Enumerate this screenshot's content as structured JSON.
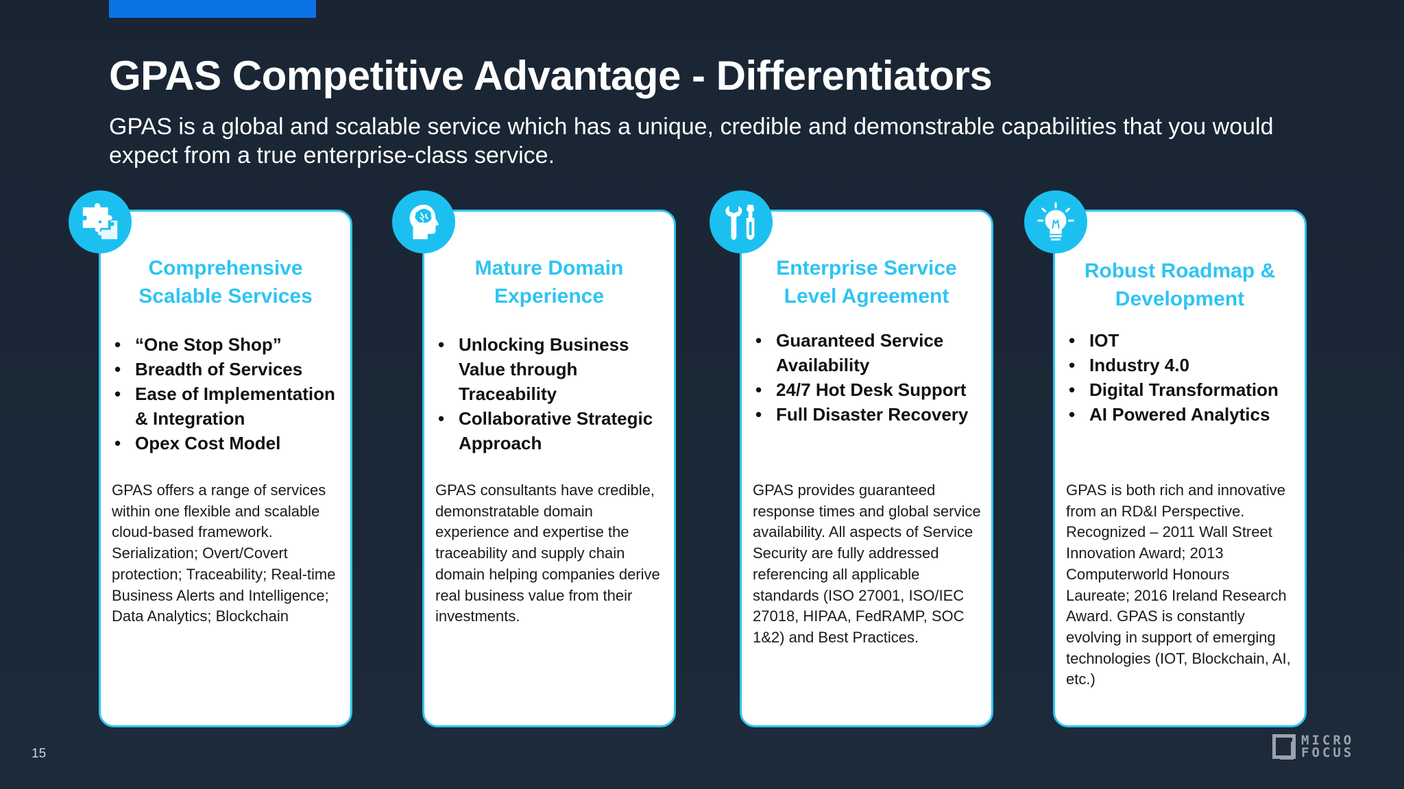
{
  "slide": {
    "title": "GPAS Competitive Advantage - Differentiators",
    "subtitle": "GPAS is a global and scalable service which has a unique, credible and demonstrable capabilities that you would expect from a true enterprise-class service.",
    "page_number": "15",
    "accent_color": "#0b73e6",
    "card_accent_color": "#2ec4f2"
  },
  "cards": [
    {
      "icon": "puzzle-icon",
      "title": "Comprehensive Scalable Services",
      "bullets": [
        "“One Stop Shop”",
        "Breadth of Services",
        "Ease of Implementation & Integration",
        "Opex Cost Model"
      ],
      "description": "GPAS offers a range of services within one flexible and scalable cloud-based framework. Serialization; Overt/Covert protection; Traceability; Real-time Business Alerts and Intelligence; Data Analytics; Blockchain"
    },
    {
      "icon": "head-brain-icon",
      "title": "Mature Domain Experience",
      "bullets": [
        "Unlocking Business Value through Traceability",
        "Collaborative Strategic Approach"
      ],
      "description": "GPAS consultants have credible, demonstratable domain experience and expertise the traceability and supply chain domain helping companies derive real business value from their investments."
    },
    {
      "icon": "tools-icon",
      "title": "Enterprise Service Level Agreement",
      "bullets": [
        "Guaranteed Service Availability",
        "24/7 Hot Desk Support",
        "Full Disaster Recovery"
      ],
      "description": "GPAS provides guaranteed response times and global service availability. All aspects of Service Security are fully addressed referencing all applicable standards (ISO 27001, ISO/IEC 27018, HIPAA, FedRAMP, SOC 1&2) and Best Practices."
    },
    {
      "icon": "lightbulb-icon",
      "title": "Robust Roadmap & Development",
      "bullets": [
        "IOT",
        "Industry 4.0",
        "Digital Transformation",
        "AI Powered Analytics"
      ],
      "description": "GPAS is both rich and innovative from an RD&I Perspective. Recognized – 2011 Wall Street Innovation Award; 2013 Computerworld Honours Laureate; 2016 Ireland Research Award. GPAS is constantly evolving in support of emerging technologies (IOT, Blockchain, AI, etc.)"
    }
  ],
  "logo": {
    "line1": "MICRO",
    "line2": "FOCUS"
  }
}
